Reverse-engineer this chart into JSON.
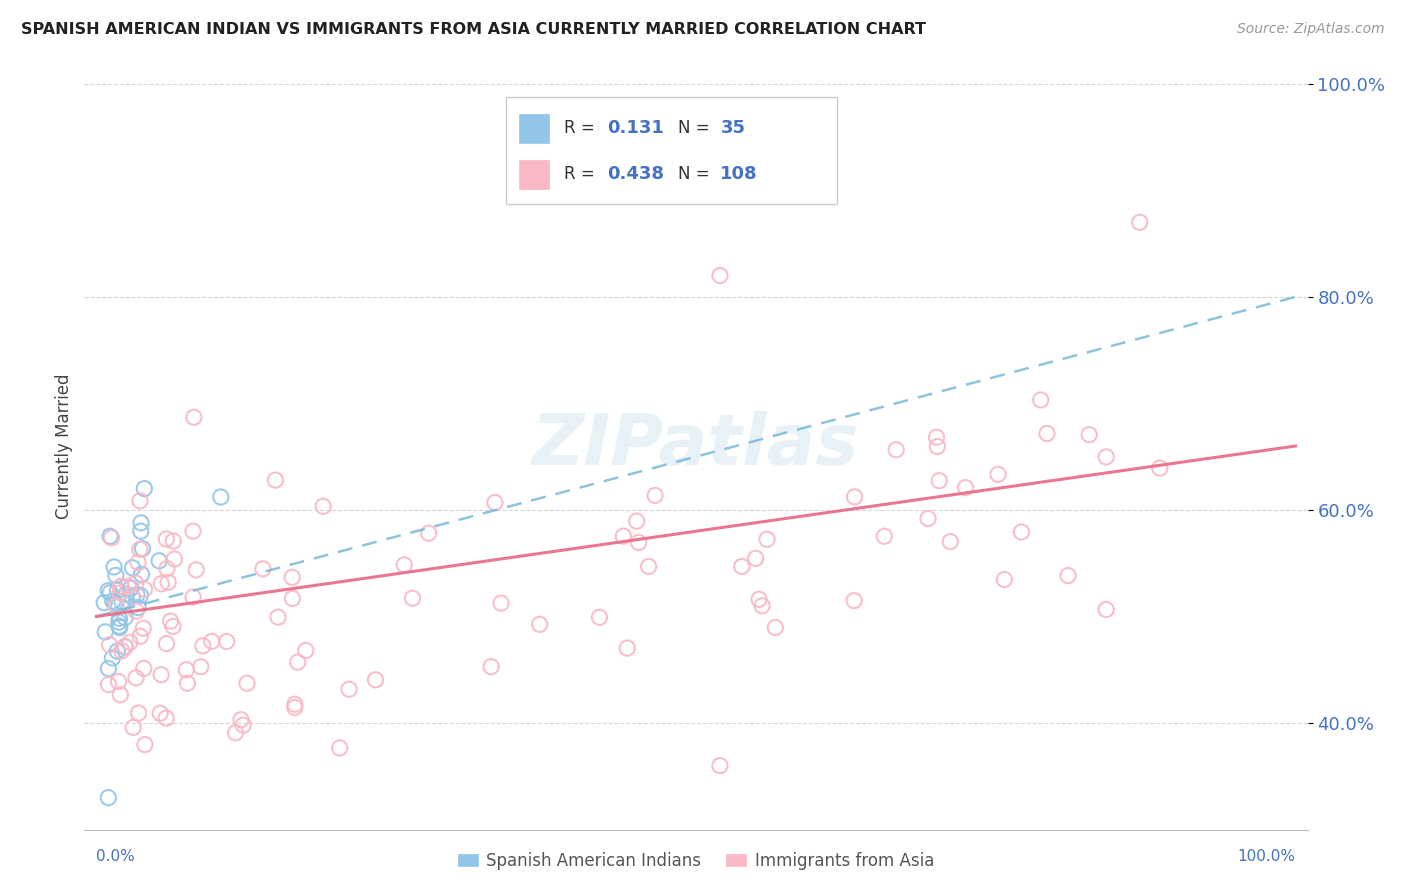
{
  "title": "SPANISH AMERICAN INDIAN VS IMMIGRANTS FROM ASIA CURRENTLY MARRIED CORRELATION CHART",
  "source": "Source: ZipAtlas.com",
  "ylabel": "Currently Married",
  "color_blue": "#92C5E8",
  "color_pink": "#F9B8C4",
  "color_blue_line": "#7AB8D8",
  "color_pink_line": "#E8708A",
  "color_text_blue": "#4472C4",
  "watermark_color": "#D8E8F0",
  "background_color": "#ffffff",
  "grid_color": "#cccccc",
  "yticks": [
    0.4,
    0.6,
    0.8,
    1.0
  ],
  "ytick_labels": [
    "40.0%",
    "60.0%",
    "80.0%",
    "100.0%"
  ],
  "ylim_low": 0.3,
  "ylim_high": 1.02,
  "xlim_low": -0.01,
  "xlim_high": 1.01,
  "blue_trend_x0": 0.0,
  "blue_trend_y0": 0.5,
  "blue_trend_x1": 1.0,
  "blue_trend_y1": 0.8,
  "pink_trend_x0": 0.0,
  "pink_trend_y0": 0.5,
  "pink_trend_x1": 1.0,
  "pink_trend_y1": 0.66
}
